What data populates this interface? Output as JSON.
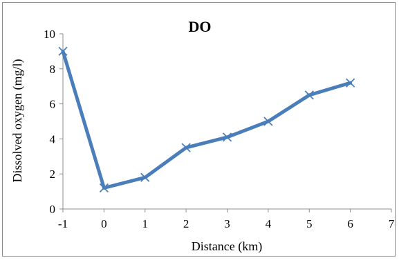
{
  "chart_data": {
    "type": "line",
    "title": "DO",
    "xlabel": "Distance (km)",
    "ylabel": "Dissolved oxygen (mg/l)",
    "xlim": [
      -1,
      7
    ],
    "ylim": [
      0,
      10
    ],
    "x_ticks": [
      -1,
      0,
      1,
      2,
      3,
      4,
      5,
      6,
      7
    ],
    "y_ticks": [
      0,
      2,
      4,
      6,
      8,
      10
    ],
    "grid": false,
    "legend": "none",
    "series": [
      {
        "x": [
          -1,
          0,
          1,
          2,
          3,
          4,
          5,
          6
        ],
        "y": [
          9.0,
          1.2,
          1.8,
          3.5,
          4.1,
          5.0,
          6.5,
          7.2
        ],
        "marker": "x",
        "color": "#4a7ebb"
      }
    ]
  },
  "colors": {
    "line": "#4a7ebb",
    "axis": "#8c8c8c",
    "frame": "#8c8c8c"
  }
}
